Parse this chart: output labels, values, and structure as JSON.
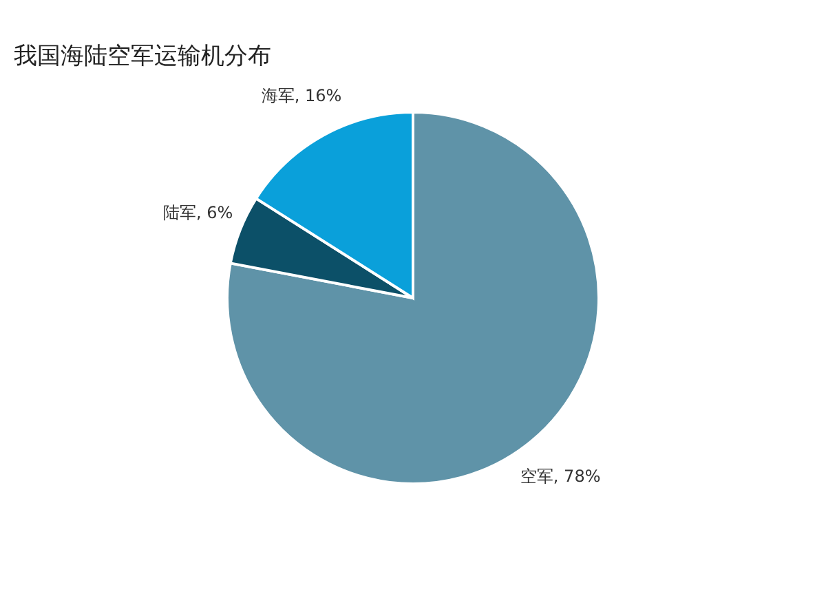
{
  "chart_data": {
    "type": "pie",
    "title": "我国海陆空军运输机分布",
    "categories": [
      "空军",
      "陆军",
      "海军"
    ],
    "values": [
      78,
      6,
      16
    ],
    "colors": [
      "#5f93a8",
      "#0c5068",
      "#0aa0da"
    ],
    "value_labels": [
      "78%",
      "6%",
      "16%"
    ],
    "legend": false
  }
}
